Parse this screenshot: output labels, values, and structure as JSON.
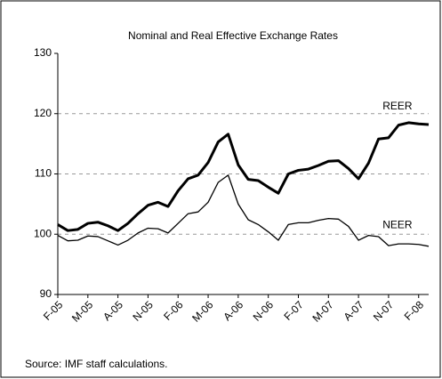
{
  "chart_data": {
    "type": "line",
    "title": "Nominal and Real Effective Exchange Rates",
    "categories": [
      "F-05",
      null,
      null,
      "M-05",
      null,
      null,
      "A-05",
      null,
      null,
      "N-05",
      null,
      null,
      "F-06",
      null,
      null,
      "M-06",
      null,
      null,
      "A-06",
      null,
      null,
      "N-06",
      null,
      null,
      "F-07",
      null,
      null,
      "M-07",
      null,
      null,
      "A-07",
      null,
      null,
      "N-07",
      null,
      null,
      "F-08",
      null
    ],
    "series": [
      {
        "name": "REER",
        "color": "#000000",
        "width": 3,
        "values": [
          101.6,
          100.6,
          100.8,
          101.8,
          102,
          101.4,
          100.6,
          101.8,
          103.4,
          104.8,
          105.3,
          104.6,
          107.2,
          109.2,
          109.8,
          111.9,
          115.3,
          116.6,
          111.5,
          109.1,
          108.9,
          107.8,
          106.8,
          110,
          110.6,
          110.8,
          111.4,
          112.1,
          112.2,
          110.9,
          109.2,
          111.8,
          115.8,
          116,
          118.1,
          118.5,
          118.3,
          118.2
        ]
      },
      {
        "name": "NEER",
        "color": "#000000",
        "width": 1.3,
        "values": [
          99.8,
          98.9,
          99,
          99.7,
          99.6,
          98.9,
          98.2,
          99,
          100.2,
          101,
          100.9,
          100.2,
          101.8,
          103.4,
          103.7,
          105.3,
          108.6,
          109.8,
          105,
          102.4,
          101.6,
          100.4,
          99,
          101.6,
          101.9,
          101.9,
          102.3,
          102.6,
          102.5,
          101.3,
          99,
          99.8,
          99.6,
          98.1,
          98.4,
          98.4,
          98.3,
          98
        ]
      }
    ],
    "ylim": [
      90,
      130
    ],
    "yticks": [
      90,
      100,
      110,
      120,
      130
    ],
    "grid": true,
    "source": "Source: IMF staff calculations."
  }
}
